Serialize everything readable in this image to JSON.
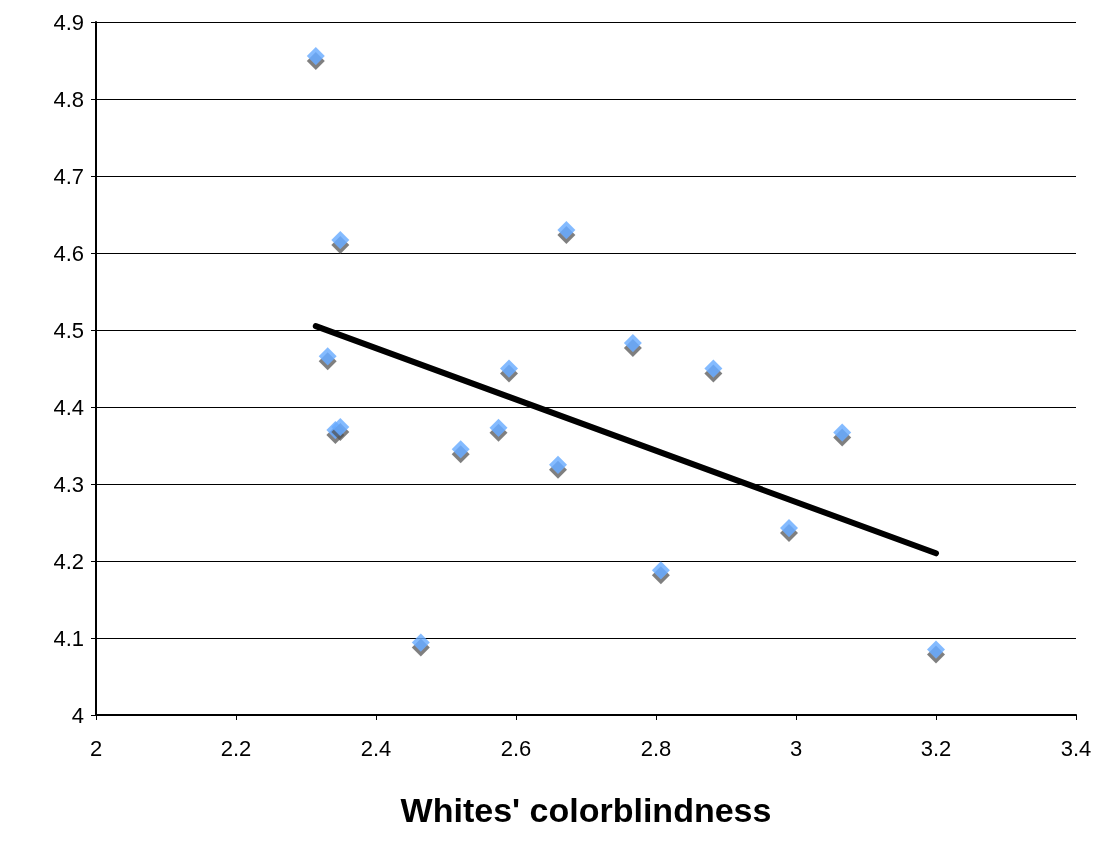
{
  "chart_data": {
    "type": "scatter",
    "xlabel": "Whites' colorblindness",
    "grid": "y",
    "xlim": [
      2,
      3.4
    ],
    "ylim": [
      4,
      4.9
    ],
    "xticks": [
      2,
      2.2,
      2.4,
      2.6,
      2.8,
      3,
      3.2,
      3.4
    ],
    "yticks": [
      4,
      4.1,
      4.2,
      4.3,
      4.4,
      4.5,
      4.6,
      4.7,
      4.8,
      4.9
    ],
    "series": [
      {
        "marker": "diamond",
        "color": "#66aaff",
        "x": [
          2.314,
          2.349,
          2.331,
          2.342,
          2.349,
          2.464,
          2.521,
          2.575,
          2.59,
          2.66,
          2.672,
          2.767,
          2.807,
          2.882,
          2.99,
          3.066,
          3.2
        ],
        "values": [
          4.856,
          4.617,
          4.466,
          4.37,
          4.374,
          4.094,
          4.345,
          4.373,
          4.45,
          4.325,
          4.63,
          4.483,
          4.188,
          4.45,
          4.243,
          4.367,
          4.085
        ]
      },
      {
        "type": "line",
        "marker": "none",
        "color": "#000000",
        "x": [
          2.314,
          3.2
        ],
        "values": [
          4.505,
          4.21
        ]
      }
    ]
  }
}
